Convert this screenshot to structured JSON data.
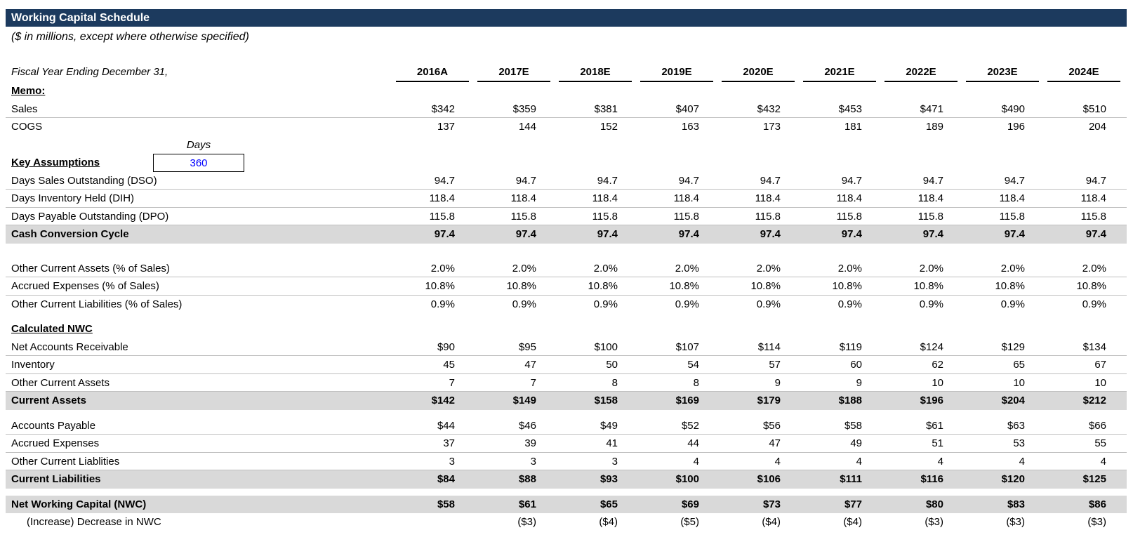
{
  "header": {
    "title": "Working Capital Schedule",
    "subtitle": "($ in millions, except where otherwise specified)"
  },
  "colors": {
    "title_bar": "#1C3A5E",
    "total_band": "#D9D9D9",
    "row_divider": "#BFBFBF",
    "input_text": "#0000FF"
  },
  "table": {
    "label_header": "Fiscal Year Ending December 31,",
    "years": [
      "2016A",
      "2017E",
      "2018E",
      "2019E",
      "2020E",
      "2021E",
      "2022E",
      "2023E",
      "2024E"
    ],
    "assumption_input": {
      "unit_label": "Days",
      "value": "360"
    },
    "rows": [
      {
        "name": "row-memo-heading",
        "type": "heading",
        "label": "Memo:"
      },
      {
        "name": "row-sales",
        "type": "data",
        "label": "Sales",
        "divider": true,
        "values": [
          "$342",
          "$359",
          "$381",
          "$407",
          "$432",
          "$453",
          "$471",
          "$490",
          "$510"
        ]
      },
      {
        "name": "row-cogs",
        "type": "data",
        "label": "COGS",
        "values": [
          "137",
          "144",
          "152",
          "163",
          "173",
          "181",
          "189",
          "196",
          "204"
        ]
      },
      {
        "name": "row-days-unit-label",
        "type": "days_label",
        "label": ""
      },
      {
        "name": "row-key-assumptions",
        "type": "input_row",
        "label": "Key Assumptions"
      },
      {
        "name": "row-dso",
        "type": "data",
        "label": "Days Sales Outstanding (DSO)",
        "divider": true,
        "values": [
          "94.7",
          "94.7",
          "94.7",
          "94.7",
          "94.7",
          "94.7",
          "94.7",
          "94.7",
          "94.7"
        ]
      },
      {
        "name": "row-dih",
        "type": "data",
        "label": "Days Inventory Held (DIH)",
        "divider": true,
        "values": [
          "118.4",
          "118.4",
          "118.4",
          "118.4",
          "118.4",
          "118.4",
          "118.4",
          "118.4",
          "118.4"
        ]
      },
      {
        "name": "row-dpo",
        "type": "data",
        "label": "Days Payable Outstanding (DPO)",
        "divider": true,
        "values": [
          "115.8",
          "115.8",
          "115.8",
          "115.8",
          "115.8",
          "115.8",
          "115.8",
          "115.8",
          "115.8"
        ]
      },
      {
        "name": "row-cash-conversion-cycle",
        "type": "total",
        "label": "Cash Conversion Cycle",
        "values": [
          "97.4",
          "97.4",
          "97.4",
          "97.4",
          "97.4",
          "97.4",
          "97.4",
          "97.4",
          "97.4"
        ]
      },
      {
        "type": "spacer",
        "height": 23
      },
      {
        "name": "row-other-current-assets-pct",
        "type": "data",
        "label": "Other Current Assets (% of Sales)",
        "divider": true,
        "values": [
          "2.0%",
          "2.0%",
          "2.0%",
          "2.0%",
          "2.0%",
          "2.0%",
          "2.0%",
          "2.0%",
          "2.0%"
        ]
      },
      {
        "name": "row-accrued-expenses-pct",
        "type": "data",
        "label": "Accrued Expenses (% of Sales)",
        "divider": true,
        "values": [
          "10.8%",
          "10.8%",
          "10.8%",
          "10.8%",
          "10.8%",
          "10.8%",
          "10.8%",
          "10.8%",
          "10.8%"
        ]
      },
      {
        "name": "row-other-current-liabilities-pct",
        "type": "data",
        "label": "Other Current Liabilities (% of Sales)",
        "values": [
          "0.9%",
          "0.9%",
          "0.9%",
          "0.9%",
          "0.9%",
          "0.9%",
          "0.9%",
          "0.9%",
          "0.9%"
        ]
      },
      {
        "type": "spacer",
        "height": 10
      },
      {
        "name": "row-calculated-nwc-heading",
        "type": "heading",
        "label": "Calculated NWC"
      },
      {
        "name": "row-net-accounts-receivable",
        "type": "data",
        "label": "Net Accounts Receivable",
        "divider": true,
        "values": [
          "$90",
          "$95",
          "$100",
          "$107",
          "$114",
          "$119",
          "$124",
          "$129",
          "$134"
        ]
      },
      {
        "name": "row-inventory",
        "type": "data",
        "label": "Inventory",
        "divider": true,
        "values": [
          "45",
          "47",
          "50",
          "54",
          "57",
          "60",
          "62",
          "65",
          "67"
        ]
      },
      {
        "name": "row-other-current-assets",
        "type": "data",
        "label": "Other Current Assets",
        "divider": true,
        "values": [
          "7",
          "7",
          "8",
          "8",
          "9",
          "9",
          "10",
          "10",
          "10"
        ]
      },
      {
        "name": "row-current-assets-total",
        "type": "total",
        "label": "Current Assets",
        "values": [
          "$142",
          "$149",
          "$158",
          "$169",
          "$179",
          "$188",
          "$196",
          "$204",
          "$212"
        ]
      },
      {
        "type": "spacer",
        "height": 10
      },
      {
        "name": "row-accounts-payable",
        "type": "data",
        "label": "Accounts Payable",
        "divider": true,
        "values": [
          "$44",
          "$46",
          "$49",
          "$52",
          "$56",
          "$58",
          "$61",
          "$63",
          "$66"
        ]
      },
      {
        "name": "row-accrued-expenses",
        "type": "data",
        "label": "Accrued Expenses",
        "divider": true,
        "values": [
          "37",
          "39",
          "41",
          "44",
          "47",
          "49",
          "51",
          "53",
          "55"
        ]
      },
      {
        "name": "row-other-current-liabilities",
        "type": "data",
        "label": "Other Current Liablities",
        "divider": true,
        "values": [
          "3",
          "3",
          "3",
          "4",
          "4",
          "4",
          "4",
          "4",
          "4"
        ]
      },
      {
        "name": "row-current-liabilities-total",
        "type": "total",
        "label": "Current Liabilities",
        "values": [
          "$84",
          "$88",
          "$93",
          "$100",
          "$106",
          "$111",
          "$116",
          "$120",
          "$125"
        ]
      },
      {
        "type": "spacer",
        "height": 10
      },
      {
        "name": "row-net-working-capital-total",
        "type": "total",
        "label": "Net Working Capital (NWC)",
        "values": [
          "$58",
          "$61",
          "$65",
          "$69",
          "$73",
          "$77",
          "$80",
          "$83",
          "$86"
        ]
      },
      {
        "name": "row-increase-decrease-nwc",
        "type": "data",
        "label": "(Increase) Decrease in NWC",
        "indent": true,
        "values": [
          "",
          "($3)",
          "($4)",
          "($5)",
          "($4)",
          "($4)",
          "($3)",
          "($3)",
          "($3)"
        ]
      }
    ]
  }
}
